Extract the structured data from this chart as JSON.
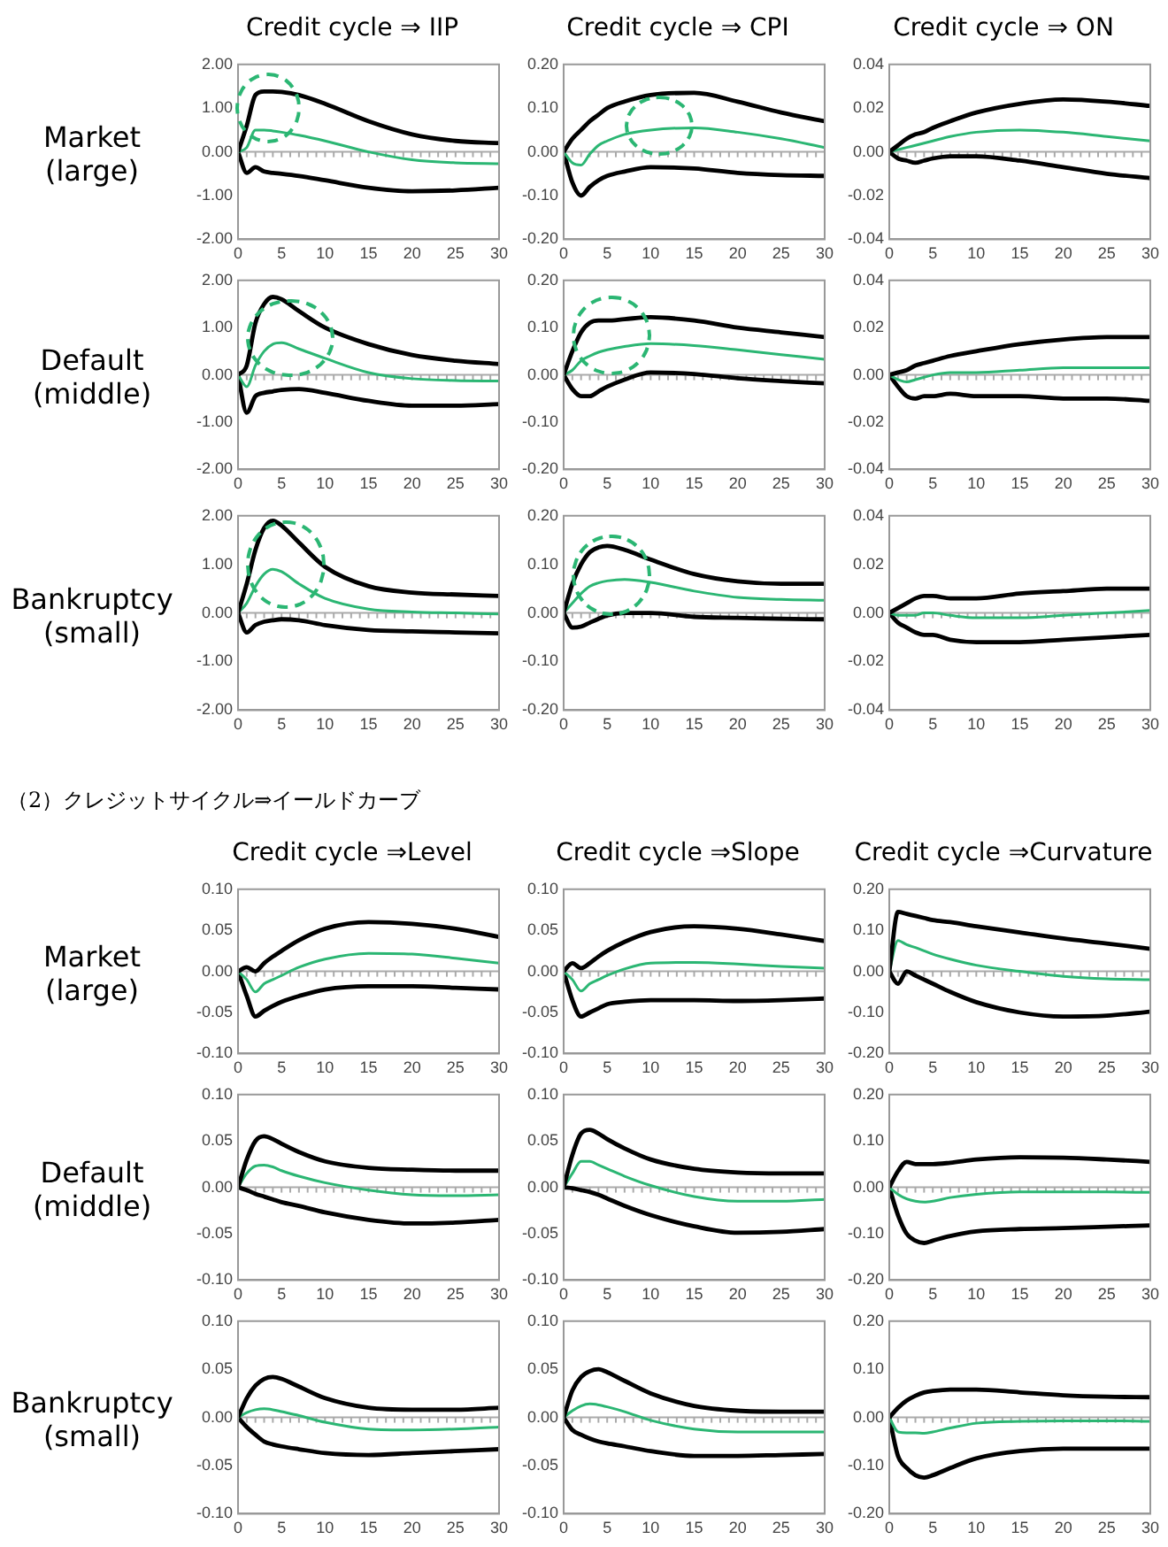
{
  "chart_data": [
    {
      "type": "line",
      "title": "Credit cycle ⇒ IIP",
      "ylabel": "Market\n(large)",
      "x": [
        0,
        1,
        2,
        3,
        4,
        5,
        7,
        10,
        15,
        20,
        25,
        30
      ],
      "xlim": [
        0,
        30
      ],
      "xticks": [
        0,
        5,
        10,
        15,
        20,
        25,
        30
      ],
      "ylim": [
        -2,
        2
      ],
      "yticks": [
        {
          "value": -2,
          "label": "-2.00"
        },
        {
          "value": -1,
          "label": "-1.00"
        },
        {
          "value": 0,
          "label": "0.00"
        },
        {
          "value": 1,
          "label": "1.00"
        },
        {
          "value": 2,
          "label": "2.00"
        }
      ],
      "grid": false,
      "legend": false,
      "marker": "none",
      "ref_lines": [
        {
          "axis": "y",
          "value": 0,
          "color": "#aaaaaa"
        }
      ],
      "series": [
        {
          "color": "#000000",
          "values": [
            0,
            0.6,
            1.3,
            1.38,
            1.38,
            1.37,
            1.3,
            1.1,
            0.7,
            0.4,
            0.25,
            0.2
          ]
        },
        {
          "color": "#2bb673",
          "values": [
            0,
            0.1,
            0.5,
            0.5,
            0.48,
            0.45,
            0.38,
            0.25,
            0,
            -0.18,
            -0.25,
            -0.27
          ]
        },
        {
          "color": "#000000",
          "values": [
            0,
            -0.48,
            -0.35,
            -0.45,
            -0.48,
            -0.5,
            -0.55,
            -0.65,
            -0.82,
            -0.9,
            -0.88,
            -0.82
          ]
        }
      ]
    },
    {
      "type": "line",
      "title": "Credit cycle ⇒ CPI",
      "x": [
        0,
        1,
        2,
        3,
        4,
        5,
        7,
        10,
        15,
        20,
        25,
        30
      ],
      "xlim": [
        0,
        30
      ],
      "xticks": [
        0,
        5,
        10,
        15,
        20,
        25,
        30
      ],
      "ylim": [
        -0.2,
        0.2
      ],
      "yticks": [
        {
          "value": -0.2,
          "label": "-0.20"
        },
        {
          "value": -0.1,
          "label": "-0.10"
        },
        {
          "value": 0,
          "label": "0.00"
        },
        {
          "value": 0.1,
          "label": "0.10"
        },
        {
          "value": 0.2,
          "label": "0.20"
        }
      ],
      "grid": false,
      "legend": false,
      "marker": "none",
      "ref_lines": [
        {
          "axis": "y",
          "value": 0,
          "color": "#aaaaaa"
        }
      ],
      "series": [
        {
          "color": "#000000",
          "values": [
            0,
            0.03,
            0.05,
            0.07,
            0.085,
            0.1,
            0.115,
            0.13,
            0.135,
            0.115,
            0.09,
            0.07
          ]
        },
        {
          "color": "#2bb673",
          "values": [
            0,
            -0.025,
            -0.03,
            -0.005,
            0.015,
            0.025,
            0.04,
            0.05,
            0.055,
            0.045,
            0.03,
            0.01
          ]
        },
        {
          "color": "#000000",
          "values": [
            0,
            -0.07,
            -0.1,
            -0.08,
            -0.065,
            -0.055,
            -0.045,
            -0.035,
            -0.038,
            -0.048,
            -0.053,
            -0.055
          ]
        }
      ]
    },
    {
      "type": "line",
      "title": "Credit cycle ⇒ ON",
      "x": [
        0,
        1,
        2,
        3,
        4,
        5,
        7,
        10,
        15,
        20,
        25,
        30
      ],
      "xlim": [
        0,
        30
      ],
      "xticks": [
        0,
        5,
        10,
        15,
        20,
        25,
        30
      ],
      "ylim": [
        -0.04,
        0.04
      ],
      "yticks": [
        {
          "value": -0.04,
          "label": "-0.04"
        },
        {
          "value": -0.02,
          "label": "-0.02"
        },
        {
          "value": 0,
          "label": "0.00"
        },
        {
          "value": 0.02,
          "label": "0.02"
        },
        {
          "value": 0.04,
          "label": "0.04"
        }
      ],
      "grid": false,
      "legend": false,
      "marker": "none",
      "ref_lines": [
        {
          "axis": "y",
          "value": 0,
          "color": "#aaaaaa"
        }
      ],
      "series": [
        {
          "color": "#000000",
          "values": [
            0,
            0.003,
            0.006,
            0.008,
            0.009,
            0.011,
            0.014,
            0.018,
            0.022,
            0.024,
            0.023,
            0.021
          ]
        },
        {
          "color": "#2bb673",
          "values": [
            0,
            0.001,
            0.002,
            0.003,
            0.004,
            0.005,
            0.007,
            0.009,
            0.01,
            0.009,
            0.007,
            0.005
          ]
        },
        {
          "color": "#000000",
          "values": [
            0,
            -0.003,
            -0.004,
            -0.005,
            -0.004,
            -0.003,
            -0.002,
            -0.002,
            -0.004,
            -0.007,
            -0.01,
            -0.012
          ]
        }
      ]
    },
    {
      "type": "line",
      "ylabel": "Default\n(middle)",
      "x": [
        0,
        1,
        2,
        3,
        4,
        5,
        7,
        10,
        15,
        20,
        25,
        30
      ],
      "xlim": [
        0,
        30
      ],
      "xticks": [
        0,
        5,
        10,
        15,
        20,
        25,
        30
      ],
      "ylim": [
        -2,
        2
      ],
      "yticks": [
        {
          "value": -2,
          "label": "-2.00"
        },
        {
          "value": -1,
          "label": "-1.00"
        },
        {
          "value": 0,
          "label": "0.00"
        },
        {
          "value": 1,
          "label": "1.00"
        },
        {
          "value": 2,
          "label": "2.00"
        }
      ],
      "grid": false,
      "legend": false,
      "marker": "none",
      "ref_lines": [
        {
          "axis": "y",
          "value": 0,
          "color": "#aaaaaa"
        }
      ],
      "series": [
        {
          "color": "#000000",
          "values": [
            0,
            0.2,
            1.1,
            1.5,
            1.65,
            1.6,
            1.35,
            1.0,
            0.65,
            0.42,
            0.3,
            0.23
          ]
        },
        {
          "color": "#2bb673",
          "values": [
            0,
            -0.25,
            0.2,
            0.5,
            0.65,
            0.68,
            0.55,
            0.35,
            0.05,
            -0.08,
            -0.12,
            -0.13
          ]
        },
        {
          "color": "#000000",
          "values": [
            0,
            -0.8,
            -0.45,
            -0.38,
            -0.35,
            -0.32,
            -0.3,
            -0.38,
            -0.55,
            -0.65,
            -0.65,
            -0.62
          ]
        }
      ]
    },
    {
      "type": "line",
      "x": [
        0,
        1,
        2,
        3,
        4,
        5,
        7,
        10,
        15,
        20,
        25,
        30
      ],
      "xlim": [
        0,
        30
      ],
      "xticks": [
        0,
        5,
        10,
        15,
        20,
        25,
        30
      ],
      "ylim": [
        -0.2,
        0.2
      ],
      "yticks": [
        {
          "value": -0.2,
          "label": "-0.20"
        },
        {
          "value": -0.1,
          "label": "-0.10"
        },
        {
          "value": 0,
          "label": "0.00"
        },
        {
          "value": 0.1,
          "label": "0.10"
        },
        {
          "value": 0.2,
          "label": "0.20"
        }
      ],
      "grid": false,
      "legend": false,
      "marker": "none",
      "ref_lines": [
        {
          "axis": "y",
          "value": 0,
          "color": "#aaaaaa"
        }
      ],
      "series": [
        {
          "color": "#000000",
          "values": [
            0,
            0.05,
            0.09,
            0.11,
            0.115,
            0.115,
            0.118,
            0.122,
            0.115,
            0.1,
            0.09,
            0.08
          ]
        },
        {
          "color": "#2bb673",
          "values": [
            0,
            0.01,
            0.03,
            0.04,
            0.048,
            0.053,
            0.06,
            0.066,
            0.062,
            0.053,
            0.043,
            0.033
          ]
        },
        {
          "color": "#000000",
          "values": [
            0,
            -0.03,
            -0.045,
            -0.045,
            -0.035,
            -0.025,
            -0.01,
            0.005,
            0.002,
            -0.007,
            -0.013,
            -0.018
          ]
        }
      ]
    },
    {
      "type": "line",
      "x": [
        0,
        1,
        2,
        3,
        4,
        5,
        7,
        10,
        15,
        20,
        25,
        30
      ],
      "xlim": [
        0,
        30
      ],
      "xticks": [
        0,
        5,
        10,
        15,
        20,
        25,
        30
      ],
      "ylim": [
        -0.04,
        0.04
      ],
      "yticks": [
        {
          "value": -0.04,
          "label": "-0.04"
        },
        {
          "value": -0.02,
          "label": "-0.02"
        },
        {
          "value": 0,
          "label": "0.00"
        },
        {
          "value": 0.02,
          "label": "0.02"
        },
        {
          "value": 0.04,
          "label": "0.04"
        }
      ],
      "grid": false,
      "legend": false,
      "marker": "none",
      "ref_lines": [
        {
          "axis": "y",
          "value": 0,
          "color": "#aaaaaa"
        }
      ],
      "series": [
        {
          "color": "#000000",
          "values": [
            0,
            0.001,
            0.002,
            0.004,
            0.005,
            0.006,
            0.008,
            0.01,
            0.013,
            0.015,
            0.016,
            0.016
          ]
        },
        {
          "color": "#2bb673",
          "values": [
            0,
            -0.002,
            -0.003,
            -0.002,
            -0.001,
            0,
            0.001,
            0.001,
            0.002,
            0.003,
            0.003,
            0.003
          ]
        },
        {
          "color": "#000000",
          "values": [
            0,
            -0.005,
            -0.009,
            -0.01,
            -0.009,
            -0.009,
            -0.008,
            -0.009,
            -0.009,
            -0.01,
            -0.01,
            -0.011
          ]
        }
      ]
    },
    {
      "type": "line",
      "ylabel": "Bankruptcy\n(small)",
      "x": [
        0,
        1,
        2,
        3,
        4,
        5,
        7,
        10,
        15,
        20,
        25,
        30
      ],
      "xlim": [
        0,
        30
      ],
      "xticks": [
        0,
        5,
        10,
        15,
        20,
        25,
        30
      ],
      "ylim": [
        -2,
        2
      ],
      "yticks": [
        {
          "value": -2,
          "label": "-2.00"
        },
        {
          "value": -1,
          "label": "-1.00"
        },
        {
          "value": 0,
          "label": "0.00"
        },
        {
          "value": 1,
          "label": "1.00"
        },
        {
          "value": 2,
          "label": "2.00"
        }
      ],
      "grid": false,
      "legend": false,
      "marker": "none",
      "ref_lines": [
        {
          "axis": "y",
          "value": 0,
          "color": "#aaaaaa"
        }
      ],
      "series": [
        {
          "color": "#000000",
          "values": [
            0,
            0.6,
            1.3,
            1.75,
            1.9,
            1.8,
            1.45,
            0.95,
            0.55,
            0.42,
            0.38,
            0.35
          ]
        },
        {
          "color": "#2bb673",
          "values": [
            0,
            0.2,
            0.55,
            0.8,
            0.9,
            0.85,
            0.6,
            0.3,
            0.08,
            0.02,
            0,
            -0.02
          ]
        },
        {
          "color": "#000000",
          "values": [
            0,
            -0.4,
            -0.25,
            -0.18,
            -0.15,
            -0.13,
            -0.15,
            -0.25,
            -0.35,
            -0.38,
            -0.4,
            -0.42
          ]
        }
      ]
    },
    {
      "type": "line",
      "x": [
        0,
        1,
        2,
        3,
        4,
        5,
        7,
        10,
        15,
        20,
        25,
        30
      ],
      "xlim": [
        0,
        30
      ],
      "xticks": [
        0,
        5,
        10,
        15,
        20,
        25,
        30
      ],
      "ylim": [
        -0.2,
        0.2
      ],
      "yticks": [
        {
          "value": -0.2,
          "label": "-0.20"
        },
        {
          "value": -0.1,
          "label": "-0.10"
        },
        {
          "value": 0,
          "label": "0.00"
        },
        {
          "value": 0.1,
          "label": "0.10"
        },
        {
          "value": 0.2,
          "label": "0.20"
        }
      ],
      "grid": false,
      "legend": false,
      "marker": "none",
      "ref_lines": [
        {
          "axis": "y",
          "value": 0,
          "color": "#aaaaaa"
        }
      ],
      "series": [
        {
          "color": "#000000",
          "values": [
            0,
            0.06,
            0.1,
            0.125,
            0.135,
            0.138,
            0.13,
            0.11,
            0.08,
            0.065,
            0.06,
            0.06
          ]
        },
        {
          "color": "#2bb673",
          "values": [
            0,
            0.02,
            0.04,
            0.055,
            0.062,
            0.066,
            0.069,
            0.063,
            0.045,
            0.032,
            0.028,
            0.026
          ]
        },
        {
          "color": "#000000",
          "values": [
            0,
            -0.03,
            -0.028,
            -0.02,
            -0.012,
            -0.005,
            0,
            0,
            -0.008,
            -0.01,
            -0.012,
            -0.013
          ]
        }
      ]
    },
    {
      "type": "line",
      "x": [
        0,
        1,
        2,
        3,
        4,
        5,
        7,
        10,
        15,
        20,
        25,
        30
      ],
      "xlim": [
        0,
        30
      ],
      "xticks": [
        0,
        5,
        10,
        15,
        20,
        25,
        30
      ],
      "ylim": [
        -0.04,
        0.04
      ],
      "yticks": [
        {
          "value": -0.04,
          "label": "-0.04"
        },
        {
          "value": -0.02,
          "label": "-0.02"
        },
        {
          "value": 0,
          "label": "0.00"
        },
        {
          "value": 0.02,
          "label": "0.02"
        },
        {
          "value": 0.04,
          "label": "0.04"
        }
      ],
      "grid": false,
      "legend": false,
      "marker": "none",
      "ref_lines": [
        {
          "axis": "y",
          "value": 0,
          "color": "#aaaaaa"
        }
      ],
      "series": [
        {
          "color": "#000000",
          "values": [
            0,
            0.002,
            0.004,
            0.006,
            0.007,
            0.007,
            0.006,
            0.006,
            0.008,
            0.009,
            0.01,
            0.01
          ]
        },
        {
          "color": "#2bb673",
          "values": [
            0,
            -0.001,
            -0.001,
            -0.001,
            0,
            0,
            -0.001,
            -0.002,
            -0.002,
            -0.001,
            0,
            0.001
          ]
        },
        {
          "color": "#000000",
          "values": [
            0,
            -0.004,
            -0.006,
            -0.008,
            -0.009,
            -0.009,
            -0.011,
            -0.012,
            -0.012,
            -0.011,
            -0.01,
            -0.009
          ]
        }
      ]
    },
    {
      "type": "line",
      "subtitle": "（2）クレジットサイクル⇒イールドカーブ",
      "title": "Credit cycle ⇒Level",
      "ylabel": "Market\n(large)",
      "x": [
        0,
        1,
        2,
        3,
        4,
        5,
        7,
        10,
        15,
        20,
        25,
        30
      ],
      "xlim": [
        0,
        30
      ],
      "xticks": [
        0,
        5,
        10,
        15,
        20,
        25,
        30
      ],
      "ylim": [
        -0.1,
        0.1
      ],
      "yticks": [
        {
          "value": -0.1,
          "label": "-0.10"
        },
        {
          "value": -0.05,
          "label": "-0.05"
        },
        {
          "value": 0,
          "label": "0.00"
        },
        {
          "value": 0.05,
          "label": "0.05"
        },
        {
          "value": 0.1,
          "label": "0.10"
        }
      ],
      "grid": false,
      "legend": false,
      "marker": "none",
      "ref_lines": [
        {
          "axis": "y",
          "value": 0,
          "color": "#aaaaaa"
        }
      ],
      "series": [
        {
          "color": "#000000",
          "values": [
            0,
            0.005,
            0,
            0.01,
            0.018,
            0.025,
            0.038,
            0.052,
            0.06,
            0.058,
            0.052,
            0.042
          ]
        },
        {
          "color": "#2bb673",
          "values": [
            0,
            -0.01,
            -0.025,
            -0.015,
            -0.01,
            -0.005,
            0.005,
            0.015,
            0.022,
            0.021,
            0.016,
            0.01
          ]
        },
        {
          "color": "#000000",
          "values": [
            0,
            -0.03,
            -0.055,
            -0.048,
            -0.042,
            -0.037,
            -0.03,
            -0.022,
            -0.018,
            -0.018,
            -0.02,
            -0.022
          ]
        }
      ]
    },
    {
      "type": "line",
      "title": "Credit cycle ⇒Slope",
      "x": [
        0,
        1,
        2,
        3,
        4,
        5,
        7,
        10,
        15,
        20,
        25,
        30
      ],
      "xlim": [
        0,
        30
      ],
      "xticks": [
        0,
        5,
        10,
        15,
        20,
        25,
        30
      ],
      "ylim": [
        -0.1,
        0.1
      ],
      "yticks": [
        {
          "value": -0.1,
          "label": "-0.10"
        },
        {
          "value": -0.05,
          "label": "-0.05"
        },
        {
          "value": 0,
          "label": "0.00"
        },
        {
          "value": 0.05,
          "label": "0.05"
        },
        {
          "value": 0.1,
          "label": "0.10"
        }
      ],
      "grid": false,
      "legend": false,
      "marker": "none",
      "ref_lines": [
        {
          "axis": "y",
          "value": 0,
          "color": "#aaaaaa"
        }
      ],
      "series": [
        {
          "color": "#000000",
          "values": [
            0,
            0.01,
            0.004,
            0.01,
            0.018,
            0.025,
            0.036,
            0.048,
            0.055,
            0.052,
            0.045,
            0.037
          ]
        },
        {
          "color": "#2bb673",
          "values": [
            0,
            -0.01,
            -0.024,
            -0.015,
            -0.01,
            -0.005,
            0.003,
            0.01,
            0.011,
            0.009,
            0.006,
            0.004
          ]
        },
        {
          "color": "#000000",
          "values": [
            0,
            -0.035,
            -0.055,
            -0.05,
            -0.045,
            -0.04,
            -0.037,
            -0.035,
            -0.035,
            -0.036,
            -0.035,
            -0.033
          ]
        }
      ]
    },
    {
      "type": "line",
      "title": "Credit cycle ⇒Curvature",
      "x": [
        0,
        1,
        2,
        3,
        4,
        5,
        7,
        10,
        15,
        20,
        25,
        30
      ],
      "xlim": [
        0,
        30
      ],
      "xticks": [
        0,
        5,
        10,
        15,
        20,
        25,
        30
      ],
      "ylim": [
        -0.2,
        0.2
      ],
      "yticks": [
        {
          "value": -0.2,
          "label": "-0.20"
        },
        {
          "value": -0.1,
          "label": "-0.10"
        },
        {
          "value": 0,
          "label": "0.00"
        },
        {
          "value": 0.1,
          "label": "0.10"
        },
        {
          "value": 0.2,
          "label": "0.20"
        }
      ],
      "grid": false,
      "legend": false,
      "marker": "none",
      "ref_lines": [
        {
          "axis": "y",
          "value": 0,
          "color": "#aaaaaa"
        }
      ],
      "series": [
        {
          "color": "#000000",
          "values": [
            0,
            0.145,
            0.14,
            0.135,
            0.13,
            0.125,
            0.12,
            0.11,
            0.095,
            0.08,
            0.068,
            0.055
          ]
        },
        {
          "color": "#2bb673",
          "values": [
            0,
            0.075,
            0.065,
            0.058,
            0.05,
            0.042,
            0.03,
            0.015,
            0,
            -0.012,
            -0.018,
            -0.02
          ]
        },
        {
          "color": "#000000",
          "values": [
            0,
            -0.03,
            0,
            -0.01,
            -0.02,
            -0.03,
            -0.05,
            -0.075,
            -0.1,
            -0.11,
            -0.108,
            -0.098
          ]
        }
      ]
    },
    {
      "type": "line",
      "ylabel": "Default\n(middle)",
      "x": [
        0,
        1,
        2,
        3,
        4,
        5,
        7,
        10,
        15,
        20,
        25,
        30
      ],
      "xlim": [
        0,
        30
      ],
      "xticks": [
        0,
        5,
        10,
        15,
        20,
        25,
        30
      ],
      "ylim": [
        -0.1,
        0.1
      ],
      "yticks": [
        {
          "value": -0.1,
          "label": "-0.10"
        },
        {
          "value": -0.05,
          "label": "-0.05"
        },
        {
          "value": 0,
          "label": "0.00"
        },
        {
          "value": 0.05,
          "label": "0.05"
        },
        {
          "value": 0.1,
          "label": "0.10"
        }
      ],
      "grid": false,
      "legend": false,
      "marker": "none",
      "ref_lines": [
        {
          "axis": "y",
          "value": 0,
          "color": "#aaaaaa"
        }
      ],
      "series": [
        {
          "color": "#000000",
          "values": [
            0,
            0.03,
            0.05,
            0.055,
            0.052,
            0.047,
            0.038,
            0.028,
            0.021,
            0.019,
            0.018,
            0.018
          ]
        },
        {
          "color": "#2bb673",
          "values": [
            0,
            0.015,
            0.023,
            0.024,
            0.022,
            0.018,
            0.012,
            0.005,
            -0.003,
            -0.008,
            -0.009,
            -0.008
          ]
        },
        {
          "color": "#000000",
          "values": [
            0,
            -0.003,
            -0.007,
            -0.01,
            -0.013,
            -0.016,
            -0.02,
            -0.027,
            -0.035,
            -0.039,
            -0.038,
            -0.035
          ]
        }
      ]
    },
    {
      "type": "line",
      "x": [
        0,
        1,
        2,
        3,
        4,
        5,
        7,
        10,
        15,
        20,
        25,
        30
      ],
      "xlim": [
        0,
        30
      ],
      "xticks": [
        0,
        5,
        10,
        15,
        20,
        25,
        30
      ],
      "ylim": [
        -0.1,
        0.1
      ],
      "yticks": [
        {
          "value": -0.1,
          "label": "-0.10"
        },
        {
          "value": -0.05,
          "label": "-0.05"
        },
        {
          "value": 0,
          "label": "0.00"
        },
        {
          "value": 0.05,
          "label": "0.05"
        },
        {
          "value": 0.1,
          "label": "0.10"
        }
      ],
      "grid": false,
      "legend": false,
      "marker": "none",
      "ref_lines": [
        {
          "axis": "y",
          "value": 0,
          "color": "#aaaaaa"
        }
      ],
      "series": [
        {
          "color": "#000000",
          "values": [
            0,
            0.035,
            0.058,
            0.062,
            0.058,
            0.052,
            0.042,
            0.03,
            0.02,
            0.016,
            0.015,
            0.015
          ]
        },
        {
          "color": "#2bb673",
          "values": [
            0,
            0.015,
            0.028,
            0.028,
            0.024,
            0.02,
            0.012,
            0.002,
            -0.01,
            -0.015,
            -0.015,
            -0.013
          ]
        },
        {
          "color": "#000000",
          "values": [
            0,
            -0.001,
            -0.003,
            -0.005,
            -0.008,
            -0.012,
            -0.02,
            -0.03,
            -0.042,
            -0.049,
            -0.048,
            -0.045
          ]
        }
      ]
    },
    {
      "type": "line",
      "x": [
        0,
        1,
        2,
        3,
        4,
        5,
        7,
        10,
        15,
        20,
        25,
        30
      ],
      "xlim": [
        0,
        30
      ],
      "xticks": [
        0,
        5,
        10,
        15,
        20,
        25,
        30
      ],
      "ylim": [
        -0.2,
        0.2
      ],
      "yticks": [
        {
          "value": -0.2,
          "label": "-0.20"
        },
        {
          "value": -0.1,
          "label": "-0.10"
        },
        {
          "value": 0,
          "label": "0.00"
        },
        {
          "value": 0.1,
          "label": "0.10"
        },
        {
          "value": 0.2,
          "label": "0.20"
        }
      ],
      "grid": false,
      "legend": false,
      "marker": "none",
      "ref_lines": [
        {
          "axis": "y",
          "value": 0,
          "color": "#aaaaaa"
        }
      ],
      "series": [
        {
          "color": "#000000",
          "values": [
            0,
            0.035,
            0.055,
            0.05,
            0.05,
            0.05,
            0.053,
            0.06,
            0.065,
            0.064,
            0.06,
            0.055
          ]
        },
        {
          "color": "#2bb673",
          "values": [
            0,
            -0.015,
            -0.025,
            -0.03,
            -0.032,
            -0.03,
            -0.022,
            -0.015,
            -0.01,
            -0.01,
            -0.01,
            -0.011
          ]
        },
        {
          "color": "#000000",
          "values": [
            0,
            -0.06,
            -0.1,
            -0.115,
            -0.12,
            -0.115,
            -0.105,
            -0.095,
            -0.09,
            -0.088,
            -0.085,
            -0.082
          ]
        }
      ]
    },
    {
      "type": "line",
      "ylabel": "Bankruptcy\n(small)",
      "x": [
        0,
        1,
        2,
        3,
        4,
        5,
        7,
        10,
        15,
        20,
        25,
        30
      ],
      "xlim": [
        0,
        30
      ],
      "xticks": [
        0,
        5,
        10,
        15,
        20,
        25,
        30
      ],
      "ylim": [
        -0.1,
        0.1
      ],
      "yticks": [
        {
          "value": -0.1,
          "label": "-0.10"
        },
        {
          "value": -0.05,
          "label": "-0.05"
        },
        {
          "value": 0,
          "label": "0.00"
        },
        {
          "value": 0.05,
          "label": "0.05"
        },
        {
          "value": 0.1,
          "label": "0.10"
        }
      ],
      "grid": false,
      "legend": false,
      "marker": "none",
      "ref_lines": [
        {
          "axis": "y",
          "value": 0,
          "color": "#aaaaaa"
        }
      ],
      "series": [
        {
          "color": "#000000",
          "values": [
            0,
            0.02,
            0.033,
            0.04,
            0.042,
            0.04,
            0.032,
            0.02,
            0.01,
            0.008,
            0.008,
            0.01
          ]
        },
        {
          "color": "#2bb673",
          "values": [
            0,
            0.005,
            0.008,
            0.009,
            0.008,
            0.006,
            0.002,
            -0.005,
            -0.012,
            -0.013,
            -0.012,
            -0.01
          ]
        },
        {
          "color": "#000000",
          "values": [
            0,
            -0.01,
            -0.018,
            -0.025,
            -0.028,
            -0.03,
            -0.033,
            -0.037,
            -0.039,
            -0.037,
            -0.035,
            -0.033
          ]
        }
      ]
    },
    {
      "type": "line",
      "x": [
        0,
        1,
        2,
        3,
        4,
        5,
        7,
        10,
        15,
        20,
        25,
        30
      ],
      "xlim": [
        0,
        30
      ],
      "xticks": [
        0,
        5,
        10,
        15,
        20,
        25,
        30
      ],
      "ylim": [
        -0.1,
        0.1
      ],
      "yticks": [
        {
          "value": -0.1,
          "label": "-0.10"
        },
        {
          "value": -0.05,
          "label": "-0.05"
        },
        {
          "value": 0,
          "label": "0.00"
        },
        {
          "value": 0.05,
          "label": "0.05"
        },
        {
          "value": 0.1,
          "label": "0.10"
        }
      ],
      "grid": false,
      "legend": false,
      "marker": "none",
      "ref_lines": [
        {
          "axis": "y",
          "value": 0,
          "color": "#aaaaaa"
        }
      ],
      "series": [
        {
          "color": "#000000",
          "values": [
            0,
            0.028,
            0.042,
            0.048,
            0.05,
            0.047,
            0.038,
            0.025,
            0.012,
            0.007,
            0.006,
            0.006
          ]
        },
        {
          "color": "#2bb673",
          "values": [
            0,
            0.007,
            0.012,
            0.014,
            0.013,
            0.011,
            0.006,
            -0.003,
            -0.012,
            -0.015,
            -0.015,
            -0.015
          ]
        },
        {
          "color": "#000000",
          "values": [
            0,
            -0.013,
            -0.018,
            -0.022,
            -0.025,
            -0.027,
            -0.03,
            -0.035,
            -0.04,
            -0.04,
            -0.039,
            -0.038
          ]
        }
      ]
    },
    {
      "type": "line",
      "x": [
        0,
        1,
        2,
        3,
        4,
        5,
        7,
        10,
        15,
        20,
        25,
        30
      ],
      "xlim": [
        0,
        30
      ],
      "xticks": [
        0,
        5,
        10,
        15,
        20,
        25,
        30
      ],
      "ylim": [
        -0.2,
        0.2
      ],
      "yticks": [
        {
          "value": -0.2,
          "label": "-0.20"
        },
        {
          "value": -0.1,
          "label": "-0.10"
        },
        {
          "value": 0,
          "label": "0.00"
        },
        {
          "value": 0.1,
          "label": "0.10"
        },
        {
          "value": 0.2,
          "label": "0.20"
        }
      ],
      "grid": false,
      "legend": false,
      "marker": "none",
      "ref_lines": [
        {
          "axis": "y",
          "value": 0,
          "color": "#aaaaaa"
        }
      ],
      "series": [
        {
          "color": "#000000",
          "values": [
            0,
            0.02,
            0.035,
            0.045,
            0.052,
            0.055,
            0.058,
            0.058,
            0.052,
            0.046,
            0.043,
            0.042
          ]
        },
        {
          "color": "#2bb673",
          "values": [
            0,
            -0.03,
            -0.032,
            -0.032,
            -0.033,
            -0.03,
            -0.022,
            -0.012,
            -0.008,
            -0.007,
            -0.007,
            -0.008
          ]
        },
        {
          "color": "#000000",
          "values": [
            0,
            -0.08,
            -0.105,
            -0.12,
            -0.125,
            -0.12,
            -0.105,
            -0.085,
            -0.07,
            -0.065,
            -0.065,
            -0.065
          ]
        }
      ]
    }
  ]
}
